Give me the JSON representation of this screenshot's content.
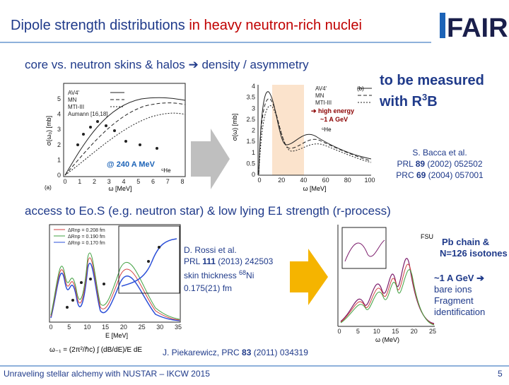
{
  "header": {
    "title": "Dipole strength distributions",
    "title_highlight": "in heavy neutron-rich nuclei",
    "logo": "FAIR"
  },
  "top": {
    "subtitle": "core vs. neutron skins & halos ➔ density / asymmetry",
    "measured_line1": "to be measured",
    "measured_line2": "with R",
    "measured_sup": "3",
    "measured_end": "B",
    "reference": {
      "author": "S. Bacca et al.",
      "ref1": [
        "PRL ",
        "89",
        " (2002) 052502"
      ],
      "ref2": [
        "PRC ",
        "69",
        " (2004) 057001"
      ]
    },
    "annotation_left": "@ 240 A MeV",
    "annotation_right": [
      "➔ high energy",
      "~1 A GeV"
    ],
    "plot_left": {
      "ylabel": "σ(ω₀) [mb]",
      "xlabel": "ω [MeV]",
      "xticks": [
        "0",
        "1",
        "2",
        "3",
        "4",
        "5",
        "6",
        "7",
        "8"
      ],
      "yticks": [
        "0",
        "1",
        "2",
        "3",
        "4",
        "5"
      ],
      "legend": [
        "AV4'",
        "MN",
        "MTI-III",
        "Aumann [16,18]"
      ],
      "nucleus": "⁶He",
      "panel": "(a)"
    },
    "plot_right": {
      "ylabel": "σ(ω) [mb]",
      "xlabel": "ω [MeV]",
      "xticks": [
        "0",
        "20",
        "40",
        "60",
        "80",
        "100"
      ],
      "yticks": [
        "0",
        "0.5",
        "1",
        "1.5",
        "2",
        "2.5",
        "3",
        "3.5",
        "4"
      ],
      "legend": [
        "AV4'",
        "MN",
        "MTI-III"
      ],
      "nucleus": "⁶He",
      "panel": "(b)"
    }
  },
  "bottom": {
    "heading": "access to Eo.S (e.g. neutron star) & low lying E1 strength (r-process)",
    "reference": {
      "author": "D. Rossi et al.",
      "ref": [
        "PRL ",
        "111",
        " (2013) 242503"
      ]
    },
    "skin": [
      "skin thickness ",
      "68",
      "Ni",
      "0.175(21) fm"
    ],
    "plot_left": {
      "xlabel": "E [MeV]",
      "xticks": [
        "0",
        "5",
        "10",
        "15",
        "20",
        "25",
        "30",
        "35"
      ],
      "legend": [
        "ΔRnp = 0.208 fm",
        "ΔRnp = 0.190 fm",
        "ΔRnp = 0.170 fm"
      ],
      "formula": "ω₋₁ = (2π²/ℏc) ∫ (dB/dE)/E dE"
    },
    "plot_right": {
      "label": "FSU",
      "xlabel": "ω (MeV)",
      "xticks": [
        "0",
        "5",
        "10",
        "15",
        "20",
        "25"
      ]
    },
    "right_text": {
      "line1": "Pb chain &",
      "line2": "N=126 isotones",
      "line3": "~1 A GeV ➔",
      "line4": "bare ions",
      "line5": "Fragment",
      "line6": "identification"
    },
    "citation": [
      "J. Piekarewicz, PRC ",
      "83",
      " (2011) 034319"
    ]
  },
  "footer": {
    "text": "Unraveling stellar alchemy with NUSTAR – IKCW 2015",
    "page": "5"
  }
}
